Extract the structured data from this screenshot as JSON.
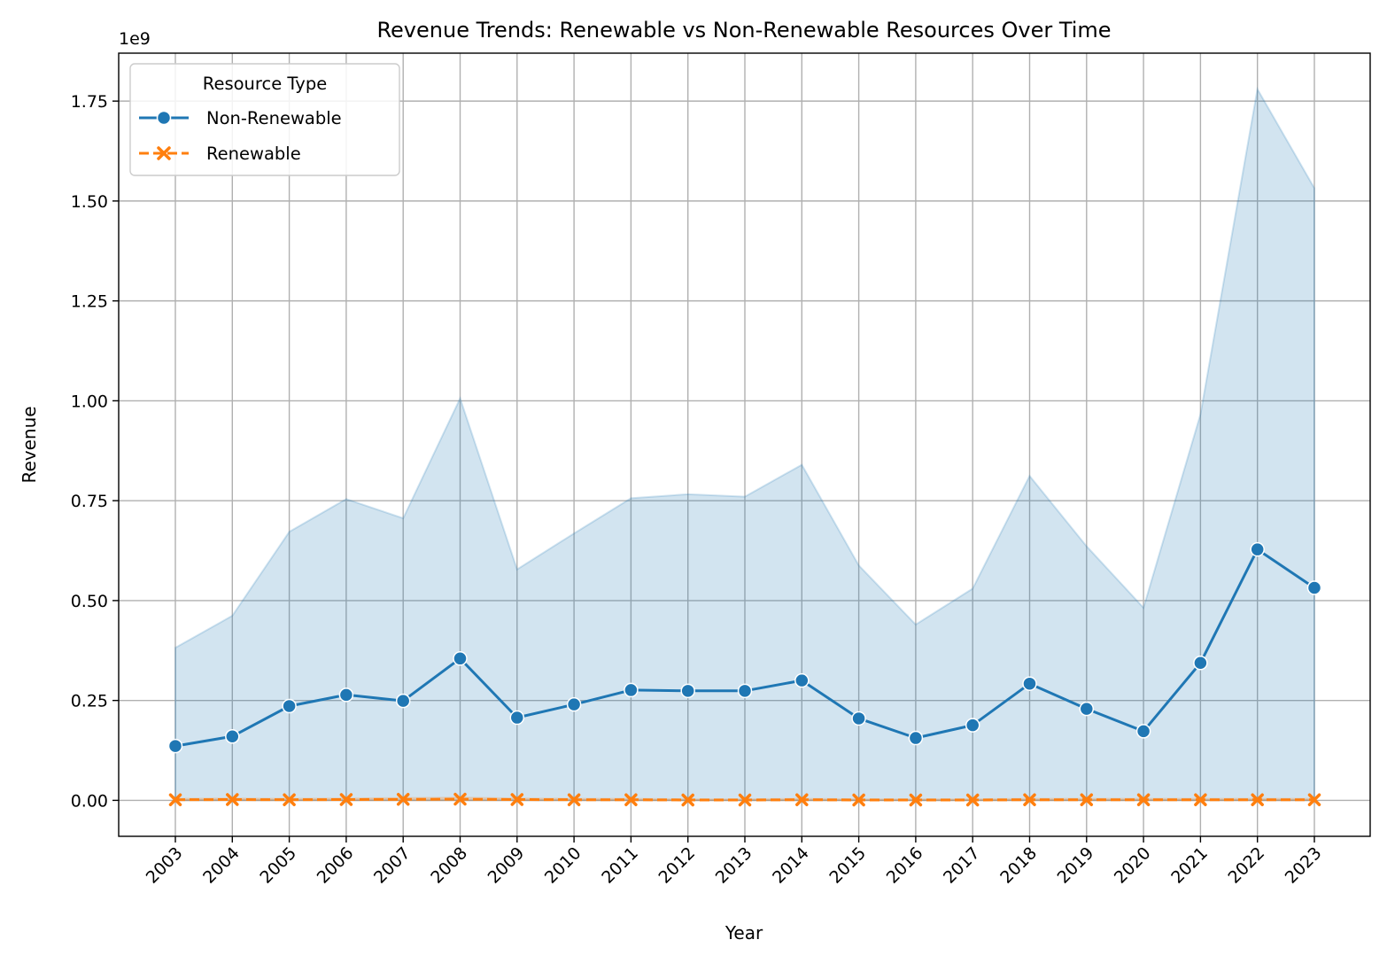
{
  "chart_data": {
    "type": "line",
    "title": "Revenue Trends: Renewable vs Non-Renewable Resources Over Time",
    "xlabel": "Year",
    "ylabel": "Revenue",
    "y_offset_label": "1e9",
    "x": [
      "2003",
      "2004",
      "2005",
      "2006",
      "2007",
      "2008",
      "2009",
      "2010",
      "2011",
      "2012",
      "2013",
      "2014",
      "2015",
      "2016",
      "2017",
      "2018",
      "2019",
      "2020",
      "2021",
      "2022",
      "2023"
    ],
    "ylim": [
      -0.09,
      1.87
    ],
    "y_ticks": [
      0.0,
      0.25,
      0.5,
      0.75,
      1.0,
      1.25,
      1.5,
      1.75
    ],
    "y_tick_labels": [
      "0.00",
      "0.25",
      "0.50",
      "0.75",
      "1.00",
      "1.25",
      "1.50",
      "1.75"
    ],
    "y_scale_note": "values in units of 1e9",
    "grid": true,
    "legend": {
      "title": "Resource Type",
      "placement": "top-left"
    },
    "series": [
      {
        "name": "Non-Renewable",
        "color": "#1f77b4",
        "marker": "circle",
        "line_style": "solid",
        "values": [
          0.136,
          0.16,
          0.236,
          0.264,
          0.249,
          0.355,
          0.207,
          0.24,
          0.276,
          0.274,
          0.274,
          0.3,
          0.205,
          0.156,
          0.188,
          0.292,
          0.229,
          0.173,
          0.344,
          0.628,
          0.532
        ],
        "band_upper": [
          0.382,
          0.462,
          0.672,
          0.754,
          0.706,
          1.006,
          0.578,
          0.668,
          0.756,
          0.766,
          0.76,
          0.84,
          0.588,
          0.44,
          0.53,
          0.812,
          0.636,
          0.482,
          0.966,
          1.78,
          1.532
        ],
        "band_lower": [
          0.0,
          0.0,
          0.0,
          0.0,
          0.0,
          0.0,
          0.0,
          0.0,
          0.0,
          0.0,
          0.0,
          0.0,
          0.0,
          0.0,
          0.0,
          0.0,
          0.0,
          0.0,
          0.0,
          0.0,
          0.0
        ]
      },
      {
        "name": "Renewable",
        "color": "#ff7f0e",
        "marker": "x",
        "line_style": "dashed",
        "values": [
          0.0015,
          0.002,
          0.0015,
          0.002,
          0.0025,
          0.003,
          0.002,
          0.0015,
          0.0015,
          0.001,
          0.001,
          0.0015,
          0.001,
          0.001,
          0.001,
          0.0015,
          0.0015,
          0.0015,
          0.0015,
          0.0015,
          0.0015
        ],
        "band_upper": [
          0.004,
          0.005,
          0.004,
          0.005,
          0.006,
          0.007,
          0.005,
          0.004,
          0.004,
          0.003,
          0.003,
          0.004,
          0.003,
          0.003,
          0.003,
          0.004,
          0.004,
          0.004,
          0.004,
          0.004,
          0.004
        ],
        "band_lower": [
          0.0,
          0.0,
          0.0,
          0.0,
          0.0,
          0.0,
          0.0,
          0.0,
          0.0,
          0.0,
          0.0,
          0.0,
          0.0,
          0.0,
          0.0,
          0.0,
          0.0,
          0.0,
          0.0,
          0.0,
          0.0
        ]
      }
    ]
  }
}
